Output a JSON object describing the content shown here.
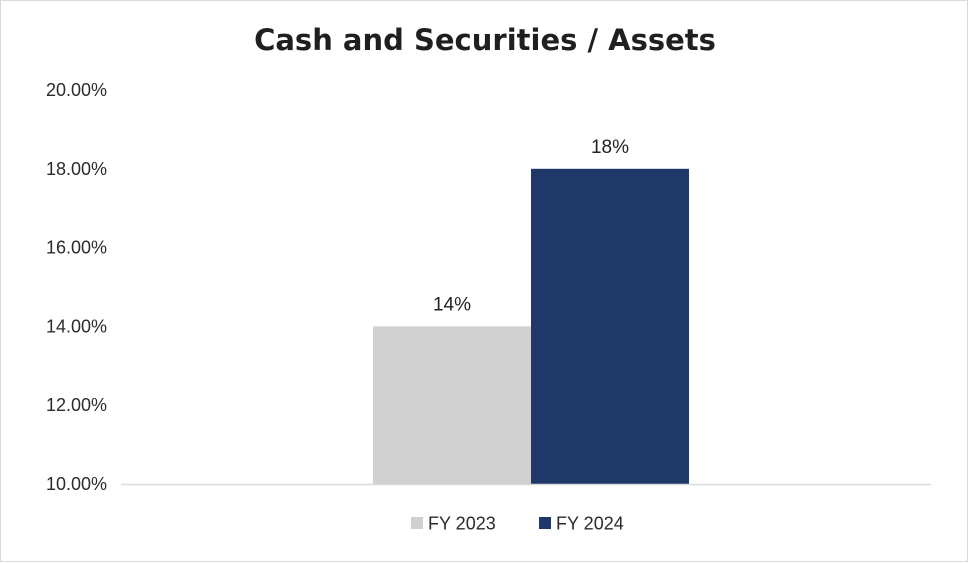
{
  "chart_data": {
    "type": "bar",
    "title": "Cash and Securities / Assets",
    "xlabel": "",
    "ylabel": "",
    "categories": [
      ""
    ],
    "series": [
      {
        "name": "FY 2023",
        "values": [
          14
        ],
        "color": "#d0d0d0",
        "data_label": "14%"
      },
      {
        "name": "FY 2024",
        "values": [
          18
        ],
        "color": "#1f3869",
        "data_label": "18%"
      }
    ],
    "ylim": [
      10,
      20
    ],
    "yticks": [
      10,
      12,
      14,
      16,
      18,
      20
    ],
    "ytick_labels": [
      "10.00%",
      "12.00%",
      "14.00%",
      "16.00%",
      "18.00%",
      "20.00%"
    ],
    "grid": false,
    "legend_position": "bottom"
  }
}
